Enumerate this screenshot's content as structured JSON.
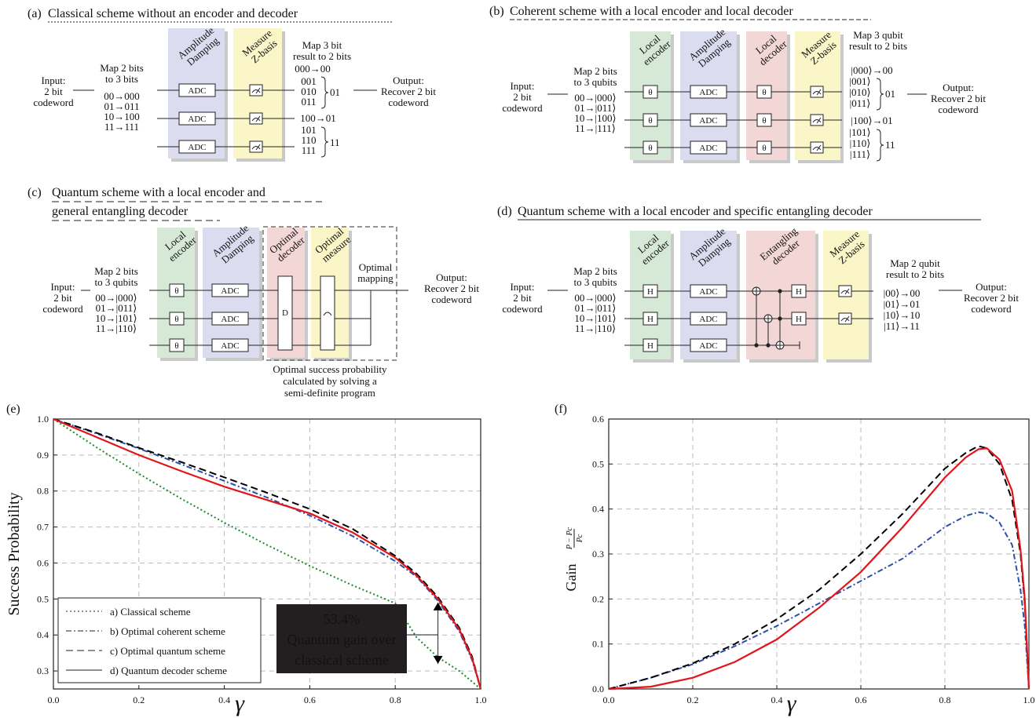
{
  "panels": {
    "a": {
      "label": "(a)",
      "title": "Classical scheme without an encoder and decoder",
      "input": [
        "Input:",
        "2 bit",
        "codeword"
      ],
      "map_in_title": [
        "Map 2 bits",
        "to 3 bits"
      ],
      "map_in": [
        "00→000",
        "01→011",
        "10→100",
        "11→111"
      ],
      "stage1": [
        "Amplitude",
        "Damping"
      ],
      "stage2": [
        "Measure",
        "Z-basis"
      ],
      "gate": "ADC",
      "map_out_title": [
        "Map 3 bit",
        "result to 2 bits"
      ],
      "map_out": [
        "000→00",
        "001",
        "010",
        "011",
        "01",
        "100→01",
        "101",
        "110",
        "111",
        "11"
      ],
      "output": [
        "Output:",
        "Recover 2 bit",
        "codeword"
      ]
    },
    "b": {
      "label": "(b)",
      "title": "Coherent scheme with a local encoder and local decoder",
      "input": [
        "Input:",
        "2 bit",
        "codeword"
      ],
      "map_in_title": [
        "Map 2 bits",
        "to 3 qubits"
      ],
      "map_in": [
        "00→|000⟩",
        "01→|011⟩",
        "10→|100⟩",
        "11→|111⟩"
      ],
      "stage0": [
        "Local",
        "encoder"
      ],
      "stage1": [
        "Amplitude",
        "Damping"
      ],
      "stage2": [
        "Local",
        "decoder"
      ],
      "stage3": [
        "Measure",
        "Z-basis"
      ],
      "theta": "θ",
      "gate": "ADC",
      "map_out_title": [
        "Map 3 qubit",
        "result to 2 bits"
      ],
      "map_out": [
        "|000⟩→00",
        "|001⟩",
        "|010⟩",
        "|011⟩",
        "01",
        "|100⟩→01",
        "|101⟩",
        "|110⟩",
        "|111⟩",
        "11"
      ],
      "output": [
        "Output:",
        "Recover 2 bit",
        "codeword"
      ]
    },
    "c": {
      "label": "(c)",
      "title_line1": "Quantum scheme with a local encoder and",
      "title_line2": "general entangling decoder",
      "input": [
        "Input:",
        "2 bit",
        "codeword"
      ],
      "map_in_title": [
        "Map 2 bits",
        "to 3 qubits"
      ],
      "map_in": [
        "00→|000⟩",
        "01→|011⟩",
        "10→|101⟩",
        "11→|110⟩"
      ],
      "stage0": [
        "Local",
        "encoder"
      ],
      "stage1": [
        "Amplitude",
        "Damping"
      ],
      "stage2": [
        "Optimal",
        "decoder"
      ],
      "stage3": [
        "Optimal",
        "measure"
      ],
      "mapping": [
        "Optimal",
        "mapping"
      ],
      "theta": "θ",
      "gate": "ADC",
      "decoder_gate": "D",
      "note": [
        "Optimal success probability",
        "calculated by solving a",
        "semi-definite program"
      ],
      "output": [
        "Output:",
        "Recover 2 bit",
        "codeword"
      ]
    },
    "d": {
      "label": "(d)",
      "title": "Quantum scheme with a local encoder and specific entangling decoder",
      "input": [
        "Input:",
        "2 bit",
        "codeword"
      ],
      "map_in_title": [
        "Map 2 bits",
        "to 3 qubits"
      ],
      "map_in": [
        "00→|000⟩",
        "01→|011⟩",
        "10→|101⟩",
        "11→|110⟩"
      ],
      "stage0": [
        "Local",
        "encoder"
      ],
      "stage1": [
        "Amplitude",
        "Damping"
      ],
      "stage2": [
        "Entangling",
        "decoder"
      ],
      "stage3": [
        "Measure",
        "Z-basis"
      ],
      "h": "H",
      "gate": "ADC",
      "map_out_title": [
        "Map 2 qubit",
        "result to 2 bits"
      ],
      "map_out": [
        "|00⟩→00",
        "|01⟩→01",
        "|10⟩→10",
        "|11⟩→11"
      ],
      "output": [
        "Output:",
        "Recover 2 bit",
        "codeword"
      ]
    },
    "e": {
      "label": "(e)"
    },
    "f": {
      "label": "(f)"
    }
  },
  "colors": {
    "classical": "#1a8a2a",
    "coherent": "#2f4fa6",
    "quantum": "#000000",
    "decoder": "#e0161b",
    "encoder_bg": "#d6e9d6",
    "damping_bg": "#dcdcf0",
    "decoder_bg": "#f3d6d6",
    "measure_bg": "#fbf6c8"
  },
  "chart_data": [
    {
      "type": "line",
      "panel": "e",
      "xlabel": "γ",
      "ylabel": "Success Probability",
      "xlim": [
        0.0,
        1.0
      ],
      "ylim": [
        0.25,
        1.0
      ],
      "xticks": [
        "0.0",
        "0.2",
        "0.4",
        "0.6",
        "0.8",
        "1.0"
      ],
      "yticks": [
        "0.3",
        "0.4",
        "0.5",
        "0.6",
        "0.7",
        "0.8",
        "0.9",
        "1.0"
      ],
      "grid": true,
      "legend_position": "bottom-left",
      "x": [
        0.0,
        0.1,
        0.2,
        0.3,
        0.4,
        0.5,
        0.6,
        0.7,
        0.8,
        0.85,
        0.9,
        0.95,
        0.98,
        1.0
      ],
      "series": [
        {
          "name": "a) Classical scheme",
          "style": "dotted",
          "color_key": "classical",
          "values": [
            1.0,
            0.922,
            0.848,
            0.778,
            0.712,
            0.65,
            0.592,
            0.538,
            0.488,
            0.393,
            0.338,
            0.3,
            0.27,
            0.25
          ]
        },
        {
          "name": "b) Optimal coherent scheme",
          "style": "dashdot",
          "color_key": "coherent",
          "values": [
            1.0,
            0.96,
            0.918,
            0.874,
            0.828,
            0.782,
            0.732,
            0.675,
            0.605,
            0.562,
            0.495,
            0.41,
            0.33,
            0.25
          ]
        },
        {
          "name": "c) Optimal quantum scheme",
          "style": "dashed",
          "color_key": "quantum",
          "values": [
            1.0,
            0.962,
            0.92,
            0.88,
            0.838,
            0.795,
            0.75,
            0.695,
            0.62,
            0.57,
            0.505,
            0.42,
            0.34,
            0.25
          ]
        },
        {
          "name": "d) Quantum decoder scheme",
          "style": "solid",
          "color_key": "decoder",
          "values": [
            1.0,
            0.95,
            0.9,
            0.855,
            0.812,
            0.775,
            0.738,
            0.685,
            0.615,
            0.565,
            0.5,
            0.415,
            0.335,
            0.25
          ]
        }
      ],
      "annotation": {
        "text": [
          "53.4%",
          "Quantum gain over",
          "classical scheme"
        ],
        "x": 0.9,
        "y_from": 0.32,
        "y_to": 0.49
      }
    },
    {
      "type": "line",
      "panel": "f",
      "xlabel": "γ",
      "ylabel": "Gain",
      "ylabel_fraction": {
        "numerator": "P − P",
        "numerator_sub": "c",
        "denominator": "P",
        "denominator_sub": "c"
      },
      "xlim": [
        0.0,
        1.0
      ],
      "ylim": [
        0.0,
        0.6
      ],
      "xticks": [
        "0.0",
        "0.2",
        "0.4",
        "0.6",
        "0.8",
        "1.0"
      ],
      "yticks": [
        "0.0",
        "0.1",
        "0.2",
        "0.3",
        "0.4",
        "0.5",
        "0.6"
      ],
      "grid": true,
      "x": [
        0.0,
        0.1,
        0.2,
        0.3,
        0.4,
        0.5,
        0.6,
        0.7,
        0.8,
        0.85,
        0.88,
        0.9,
        0.93,
        0.96,
        0.98,
        0.99,
        1.0
      ],
      "series": [
        {
          "style": "dashdot",
          "color_key": "coherent",
          "values": [
            0.0,
            0.025,
            0.055,
            0.095,
            0.14,
            0.19,
            0.24,
            0.29,
            0.36,
            0.385,
            0.393,
            0.39,
            0.37,
            0.32,
            0.22,
            0.14,
            0.0
          ]
        },
        {
          "style": "dashed",
          "color_key": "quantum",
          "values": [
            0.0,
            0.025,
            0.057,
            0.1,
            0.155,
            0.22,
            0.3,
            0.39,
            0.49,
            0.525,
            0.54,
            0.535,
            0.5,
            0.42,
            0.3,
            0.19,
            0.0
          ]
        },
        {
          "style": "solid",
          "color_key": "decoder",
          "values": [
            0.0,
            0.005,
            0.025,
            0.06,
            0.11,
            0.18,
            0.26,
            0.36,
            0.47,
            0.515,
            0.533,
            0.535,
            0.51,
            0.44,
            0.31,
            0.2,
            0.0
          ]
        }
      ]
    }
  ]
}
